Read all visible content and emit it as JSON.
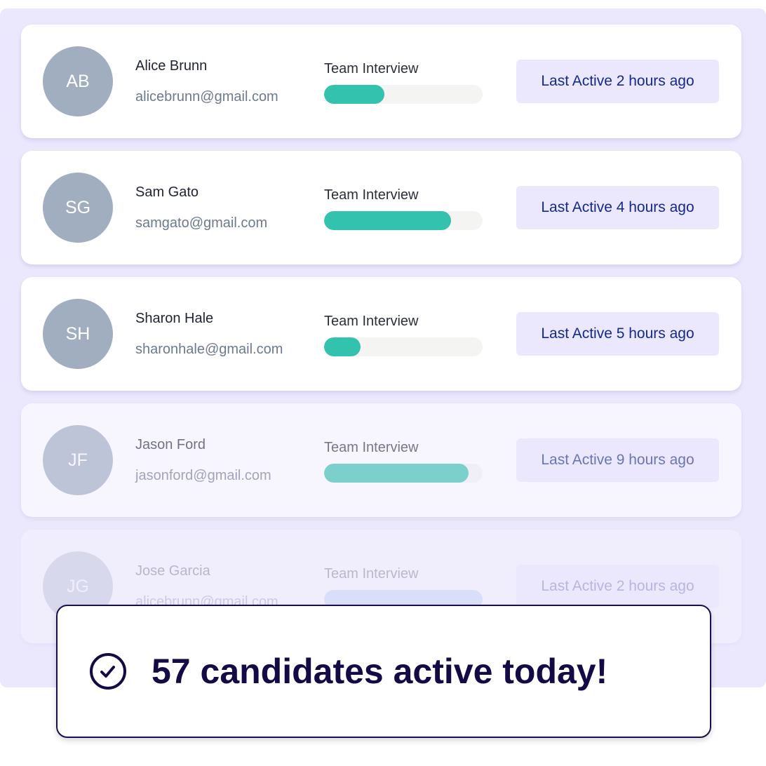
{
  "candidates": [
    {
      "initials": "AB",
      "name": "Alice Brunn",
      "email": "alicebrunn@gmail.com",
      "stage": "Team Interview",
      "progress_pct": 38,
      "last_active": "Last Active 2 hours ago"
    },
    {
      "initials": "SG",
      "name": "Sam Gato",
      "email": "samgato@gmail.com",
      "stage": "Team Interview",
      "progress_pct": 80,
      "last_active": "Last Active 4 hours ago"
    },
    {
      "initials": "SH",
      "name": "Sharon Hale",
      "email": "sharonhale@gmail.com",
      "stage": "Team Interview",
      "progress_pct": 23,
      "last_active": "Last Active 5 hours ago"
    },
    {
      "initials": "JF",
      "name": "Jason Ford",
      "email": "jasonford@gmail.com",
      "stage": "Team Interview",
      "progress_pct": 91,
      "last_active": "Last Active 9 hours ago"
    },
    {
      "initials": "JG",
      "name": "Jose Garcia",
      "email": "alicebrunn@gmail.com",
      "stage": "Team Interview",
      "progress_pct": 100,
      "last_active": "Last Active 2 hours ago"
    }
  ],
  "banner": {
    "icon": "check-circle-icon",
    "message": "57 candidates active today!"
  },
  "colors": {
    "accent": "#33c2ad",
    "badge_bg": "#ebe7fd",
    "badge_text": "#142a8a",
    "banner_text": "#140a45"
  }
}
